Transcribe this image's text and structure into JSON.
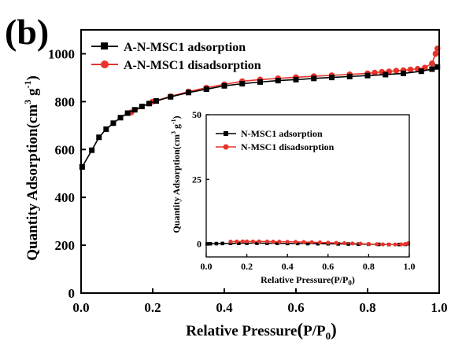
{
  "figure": {
    "panel_label": "(b)"
  },
  "chart_data": [
    {
      "id": "main",
      "type": "line",
      "xlabel_main": "Relative Pressure",
      "xlabel_unit_open": "(",
      "xlabel_unit_p": "P/P",
      "xlabel_unit_sub": "0",
      "xlabel_unit_close": ")",
      "ylabel_main": "Quantity Adsorption",
      "ylabel_unit": "(cm",
      "ylabel_sup3": "3",
      "ylabel_g": " g",
      "ylabel_supm1": "-1",
      "ylabel_close": ")",
      "xlim": [
        0,
        1.0
      ],
      "ylim": [
        0,
        1100
      ],
      "x_ticks": [
        0.0,
        0.2,
        0.4,
        0.6,
        0.8,
        1.0
      ],
      "x_tick_labels": [
        "0.0",
        "0.2",
        "0.4",
        "0.6",
        "0.8",
        "1.0"
      ],
      "y_ticks": [
        0,
        200,
        400,
        600,
        800,
        1000
      ],
      "y_tick_labels": [
        "0",
        "200",
        "400",
        "600",
        "800",
        "1000"
      ],
      "grid": false,
      "legend_position": "top-left",
      "series": [
        {
          "name": "A-N-MSC1 adsorption",
          "color": "#000000",
          "marker": "square",
          "x": [
            0.003,
            0.03,
            0.05,
            0.07,
            0.09,
            0.11,
            0.13,
            0.15,
            0.17,
            0.19,
            0.21,
            0.25,
            0.3,
            0.35,
            0.4,
            0.45,
            0.5,
            0.55,
            0.6,
            0.65,
            0.7,
            0.75,
            0.8,
            0.85,
            0.9,
            0.95,
            0.98,
            0.995
          ],
          "y": [
            527,
            597,
            651,
            685,
            710,
            733,
            752,
            766,
            780,
            792,
            803,
            820,
            838,
            852,
            866,
            875,
            882,
            888,
            892,
            897,
            901,
            905,
            909,
            913,
            918,
            927,
            936,
            945
          ]
        },
        {
          "name": "A-N-MSC1 disadsorption",
          "color": "#e8332a",
          "marker": "circle",
          "x": [
            0.14,
            0.2,
            0.25,
            0.3,
            0.35,
            0.4,
            0.45,
            0.5,
            0.55,
            0.6,
            0.65,
            0.7,
            0.75,
            0.8,
            0.82,
            0.84,
            0.86,
            0.88,
            0.9,
            0.92,
            0.94,
            0.96,
            0.98,
            0.99,
            0.995
          ],
          "y": [
            755,
            800,
            822,
            842,
            858,
            872,
            885,
            892,
            897,
            902,
            906,
            910,
            914,
            918,
            921,
            924,
            926,
            929,
            931,
            934,
            937,
            942,
            960,
            1000,
            1022
          ]
        }
      ]
    },
    {
      "id": "inset",
      "type": "line",
      "xlabel_main": "Relative Pressure",
      "xlabel_unit": "(P/P",
      "xlabel_unit_sub": "0",
      "xlabel_unit_close": ")",
      "ylabel_main": "Quantity Adsorption",
      "ylabel_unit": "(cm",
      "ylabel_sup3": "3",
      "ylabel_g": " g",
      "ylabel_supm1": "-1",
      "ylabel_close": ")",
      "xlim": [
        0,
        1.0
      ],
      "ylim": [
        -5,
        50
      ],
      "x_ticks": [
        0.0,
        0.2,
        0.4,
        0.6,
        0.8,
        1.0
      ],
      "x_tick_labels": [
        "0.0",
        "0.2",
        "0.4",
        "0.6",
        "0.8",
        "1.0"
      ],
      "y_ticks": [
        0,
        25,
        50
      ],
      "y_tick_labels": [
        "0",
        "25",
        "50"
      ],
      "grid": false,
      "legend_position": "top-left",
      "series": [
        {
          "name": "N-MSC1 adsorption",
          "color": "#000000",
          "marker": "square",
          "x": [
            0.005,
            0.02,
            0.05,
            0.08,
            0.12,
            0.16,
            0.2,
            0.25,
            0.3,
            0.35,
            0.4,
            0.45,
            0.5,
            0.55,
            0.6,
            0.65,
            0.7,
            0.75,
            0.8,
            0.85,
            0.9,
            0.95,
            0.98,
            0.995
          ],
          "y": [
            0.05,
            0.1,
            0.15,
            0.2,
            0.25,
            0.25,
            0.3,
            0.3,
            0.3,
            0.25,
            0.2,
            0.2,
            0.15,
            0.1,
            0.1,
            0.05,
            0.0,
            -0.05,
            -0.1,
            -0.15,
            -0.2,
            -0.2,
            -0.15,
            0.1
          ]
        },
        {
          "name": "N-MSC1 disadsorption",
          "color": "#e8332a",
          "marker": "circle",
          "x": [
            0.12,
            0.15,
            0.18,
            0.2,
            0.23,
            0.26,
            0.3,
            0.33,
            0.36,
            0.4,
            0.44,
            0.48,
            0.52,
            0.56,
            0.6,
            0.64,
            0.68,
            0.72,
            0.76,
            0.8,
            0.84,
            0.87,
            0.9,
            0.93,
            0.96,
            0.98,
            0.995
          ],
          "y": [
            0.9,
            0.95,
            1.0,
            1.0,
            0.95,
            1.0,
            0.95,
            0.9,
            0.9,
            0.85,
            0.8,
            0.75,
            0.7,
            0.6,
            0.5,
            0.4,
            0.3,
            0.2,
            0.1,
            0.0,
            -0.1,
            -0.15,
            -0.2,
            -0.2,
            -0.15,
            0.0,
            0.3
          ]
        }
      ]
    }
  ]
}
